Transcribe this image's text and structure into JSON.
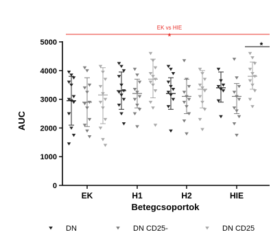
{
  "chart_data": {
    "type": "scatter",
    "title": "",
    "xlabel": "Betegcsoportok",
    "ylabel": "AUC",
    "ylim": [
      0,
      5000
    ],
    "yticks": [
      0,
      1000,
      2000,
      3000,
      4000,
      5000
    ],
    "categories": [
      "EK",
      "H1",
      "H2",
      "HIE"
    ],
    "grid": false,
    "legend_position": "bottom",
    "series": [
      {
        "name": "DN",
        "color": "#222222",
        "marker": "triangle-down",
        "points": [
          [
            3950,
            3850,
            3750,
            3600,
            3500,
            3100,
            3000,
            2950,
            2900,
            2500,
            2000,
            1750,
            1450
          ],
          [
            4250,
            4150,
            4000,
            3800,
            3500,
            3300,
            3250,
            3150,
            3000,
            2800,
            2500,
            2150
          ],
          [
            4150,
            4050,
            3900,
            3600,
            3450,
            3350,
            3250,
            3150,
            3000,
            2750,
            1900
          ],
          [
            4050,
            3650,
            3500,
            3450,
            3350,
            3300,
            2950,
            2400
          ]
        ],
        "mean": [
          2950,
          3300,
          3200,
          3400
        ],
        "sd_low": [
          2100,
          2650,
          2650,
          2900
        ],
        "sd_high": [
          3800,
          3950,
          3750,
          3950
        ]
      },
      {
        "name": "DN CD25-",
        "color": "#7f7f7f",
        "marker": "triangle-down",
        "points": [
          [
            4100,
            4000,
            3500,
            3400,
            3250,
            2900,
            2850,
            2700,
            2300,
            2100,
            1900,
            1700
          ],
          [
            4050,
            3850,
            3600,
            3350,
            3250,
            3100,
            3000,
            2800,
            2650,
            2500,
            2050
          ],
          [
            4350,
            3700,
            3450,
            3250,
            3100,
            3000,
            2900,
            2750,
            2500,
            2250,
            1800
          ],
          [
            4400,
            3750,
            3450,
            3250,
            3100,
            3000,
            2700,
            2600,
            2400,
            2150,
            1750
          ]
        ],
        "mean": [
          2900,
          3200,
          3100,
          3100
        ],
        "sd_low": [
          2050,
          2700,
          2500,
          2500
        ],
        "sd_high": [
          3750,
          3700,
          3700,
          3550
        ]
      },
      {
        "name": "DN CD25",
        "color": "#a9a9a9",
        "marker": "triangle-down",
        "points": [
          [
            4150,
            3950,
            3700,
            3450,
            3200,
            3000,
            2900,
            2700,
            2300,
            2000,
            1600,
            1400
          ],
          [
            4600,
            4350,
            4100,
            3900,
            3800,
            3700,
            3600,
            3500,
            3300,
            2900,
            2700,
            2100
          ],
          [
            4050,
            3900,
            3700,
            3500,
            3400,
            3300,
            3100,
            2900,
            2650,
            2300,
            1950
          ],
          [
            4600,
            4450,
            4250,
            4050,
            3900,
            3800,
            3650,
            3500,
            3300,
            3000,
            2750
          ]
        ],
        "mean": [
          3150,
          3700,
          3350,
          3800
        ],
        "sd_low": [
          2150,
          3050,
          2700,
          3350
        ],
        "sd_high": [
          4100,
          4400,
          4000,
          4300
        ]
      }
    ],
    "annotations": [
      {
        "text": "EK vs HIE",
        "color": "#e8302a",
        "star": "*"
      },
      {
        "text": "*",
        "color": "#000000",
        "group": "HIE"
      }
    ]
  }
}
